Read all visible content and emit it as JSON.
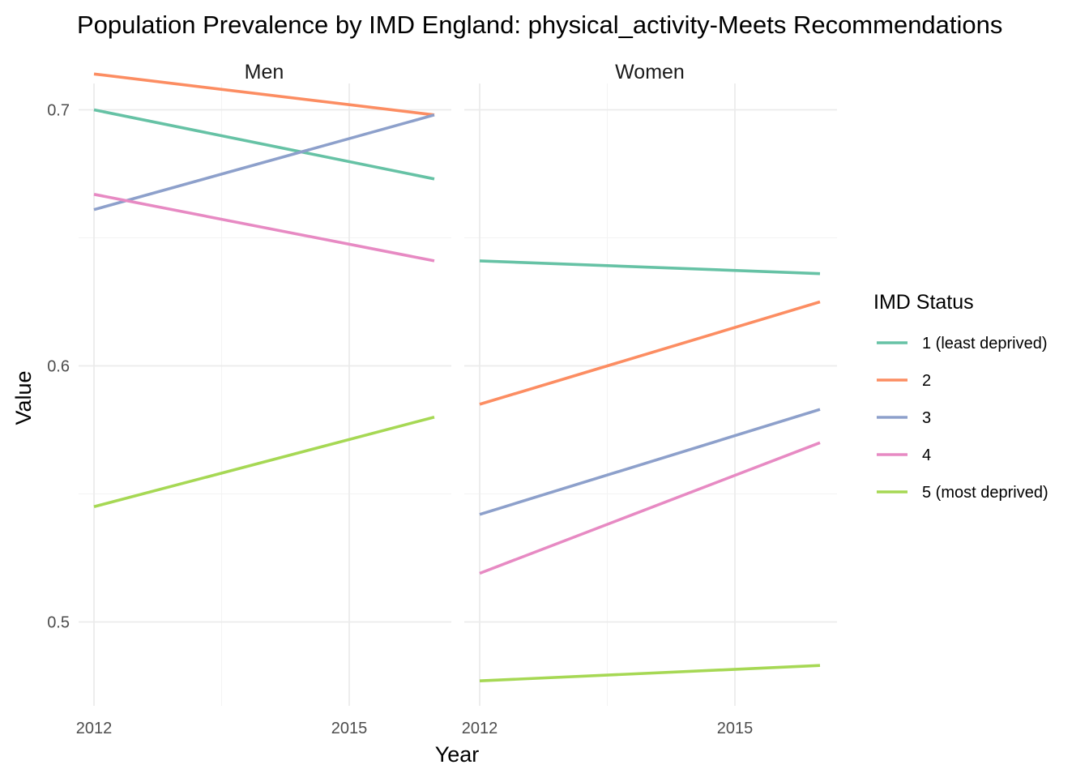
{
  "chart_data": {
    "type": "line",
    "title": "Population Prevalence by IMD England: physical_activity-Meets Recommendations",
    "xlabel": "Year",
    "ylabel": "Value",
    "xlim": [
      2012,
      2016.4
    ],
    "ylim": [
      0.475,
      0.725
    ],
    "x_ticks": [
      2012,
      2015
    ],
    "x_tick_labels": [
      "2012",
      "2015"
    ],
    "y_ticks": [
      0.5,
      0.6,
      0.7
    ],
    "y_tick_labels": [
      "0.5",
      "0.6",
      "0.7"
    ],
    "grid": true,
    "legend": {
      "title": "IMD Status",
      "position": "right"
    },
    "panels": [
      {
        "strip": "Men",
        "series": [
          {
            "name": "1 (least deprived)",
            "color": "#66C2A5",
            "x": [
              2012,
              2016
            ],
            "y": [
              0.7,
              0.673
            ]
          },
          {
            "name": "2",
            "color": "#FC8D62",
            "x": [
              2012,
              2016
            ],
            "y": [
              0.714,
              0.698
            ]
          },
          {
            "name": "3",
            "color": "#8DA0CB",
            "x": [
              2012,
              2016
            ],
            "y": [
              0.661,
              0.698
            ]
          },
          {
            "name": "4",
            "color": "#E78AC3",
            "x": [
              2012,
              2016
            ],
            "y": [
              0.667,
              0.641
            ]
          },
          {
            "name": "5 (most deprived)",
            "color": "#A6D854",
            "x": [
              2012,
              2016
            ],
            "y": [
              0.545,
              0.58
            ]
          }
        ]
      },
      {
        "strip": "Women",
        "series": [
          {
            "name": "1 (least deprived)",
            "color": "#66C2A5",
            "x": [
              2012,
              2016
            ],
            "y": [
              0.641,
              0.636
            ]
          },
          {
            "name": "2",
            "color": "#FC8D62",
            "x": [
              2012,
              2016
            ],
            "y": [
              0.585,
              0.625
            ]
          },
          {
            "name": "3",
            "color": "#8DA0CB",
            "x": [
              2012,
              2016
            ],
            "y": [
              0.542,
              0.583
            ]
          },
          {
            "name": "4",
            "color": "#E78AC3",
            "x": [
              2012,
              2016
            ],
            "y": [
              0.519,
              0.57
            ]
          },
          {
            "name": "5 (most deprived)",
            "color": "#A6D854",
            "x": [
              2012,
              2016
            ],
            "y": [
              0.477,
              0.483
            ]
          }
        ]
      }
    ]
  }
}
